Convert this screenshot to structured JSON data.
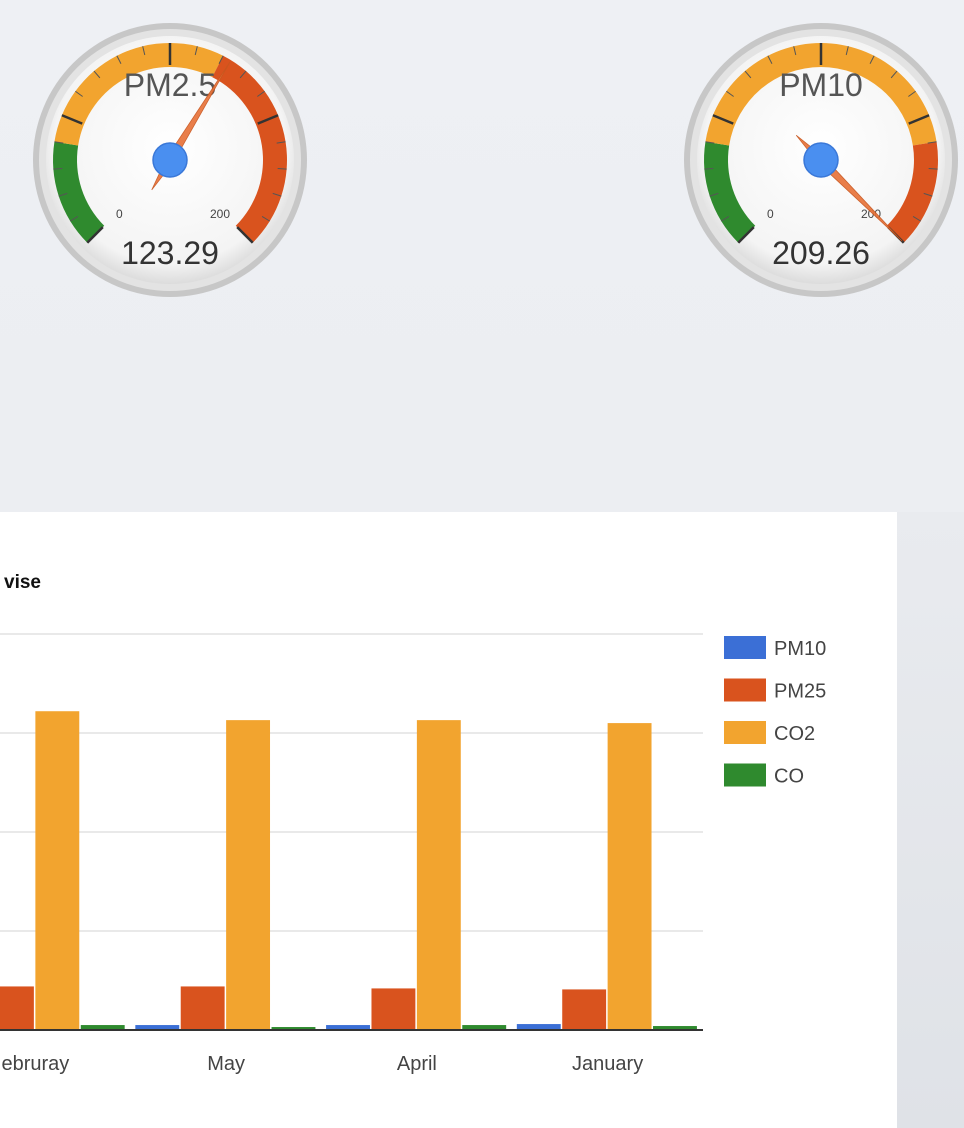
{
  "gauges": [
    {
      "id": "pm25",
      "title": "PM2.5",
      "value": 123.29,
      "value_text": "123.29",
      "min": 0,
      "max": 200,
      "min_label": "0",
      "max_label": "200",
      "bands": [
        {
          "from": 0,
          "to": 40,
          "color": "#2f8a2e"
        },
        {
          "from": 40,
          "to": 120,
          "color": "#f2a42f"
        },
        {
          "from": 120,
          "to": 200,
          "color": "#d9531e"
        }
      ]
    },
    {
      "id": "pm10",
      "title": "PM10",
      "value": 209.26,
      "value_text": "209.26",
      "min": 0,
      "max": 200,
      "min_label": "0",
      "max_label": "200",
      "bands": [
        {
          "from": 0,
          "to": 40,
          "color": "#2f8a2e"
        },
        {
          "from": 40,
          "to": 160,
          "color": "#f2a42f"
        },
        {
          "from": 160,
          "to": 200,
          "color": "#d9531e"
        }
      ]
    }
  ],
  "chart_data": {
    "type": "bar",
    "title": "vise",
    "categories": [
      "ebruray",
      "May",
      "April",
      "January"
    ],
    "series": [
      {
        "name": "PM10",
        "color": "#3b6fd6",
        "values": [
          0.6,
          0.5,
          0.5,
          0.6
        ]
      },
      {
        "name": "PM25",
        "color": "#d9531e",
        "values": [
          4.4,
          4.4,
          4.2,
          4.1
        ]
      },
      {
        "name": "CO2",
        "color": "#f2a42f",
        "values": [
          32.2,
          31.3,
          31.3,
          31.0
        ]
      },
      {
        "name": "CO",
        "color": "#2f8a2e",
        "values": [
          0.5,
          0.3,
          0.5,
          0.4
        ]
      }
    ],
    "ylim": [
      0,
      40
    ],
    "grid": true,
    "legend": "right",
    "xlabel": "",
    "ylabel": ""
  }
}
